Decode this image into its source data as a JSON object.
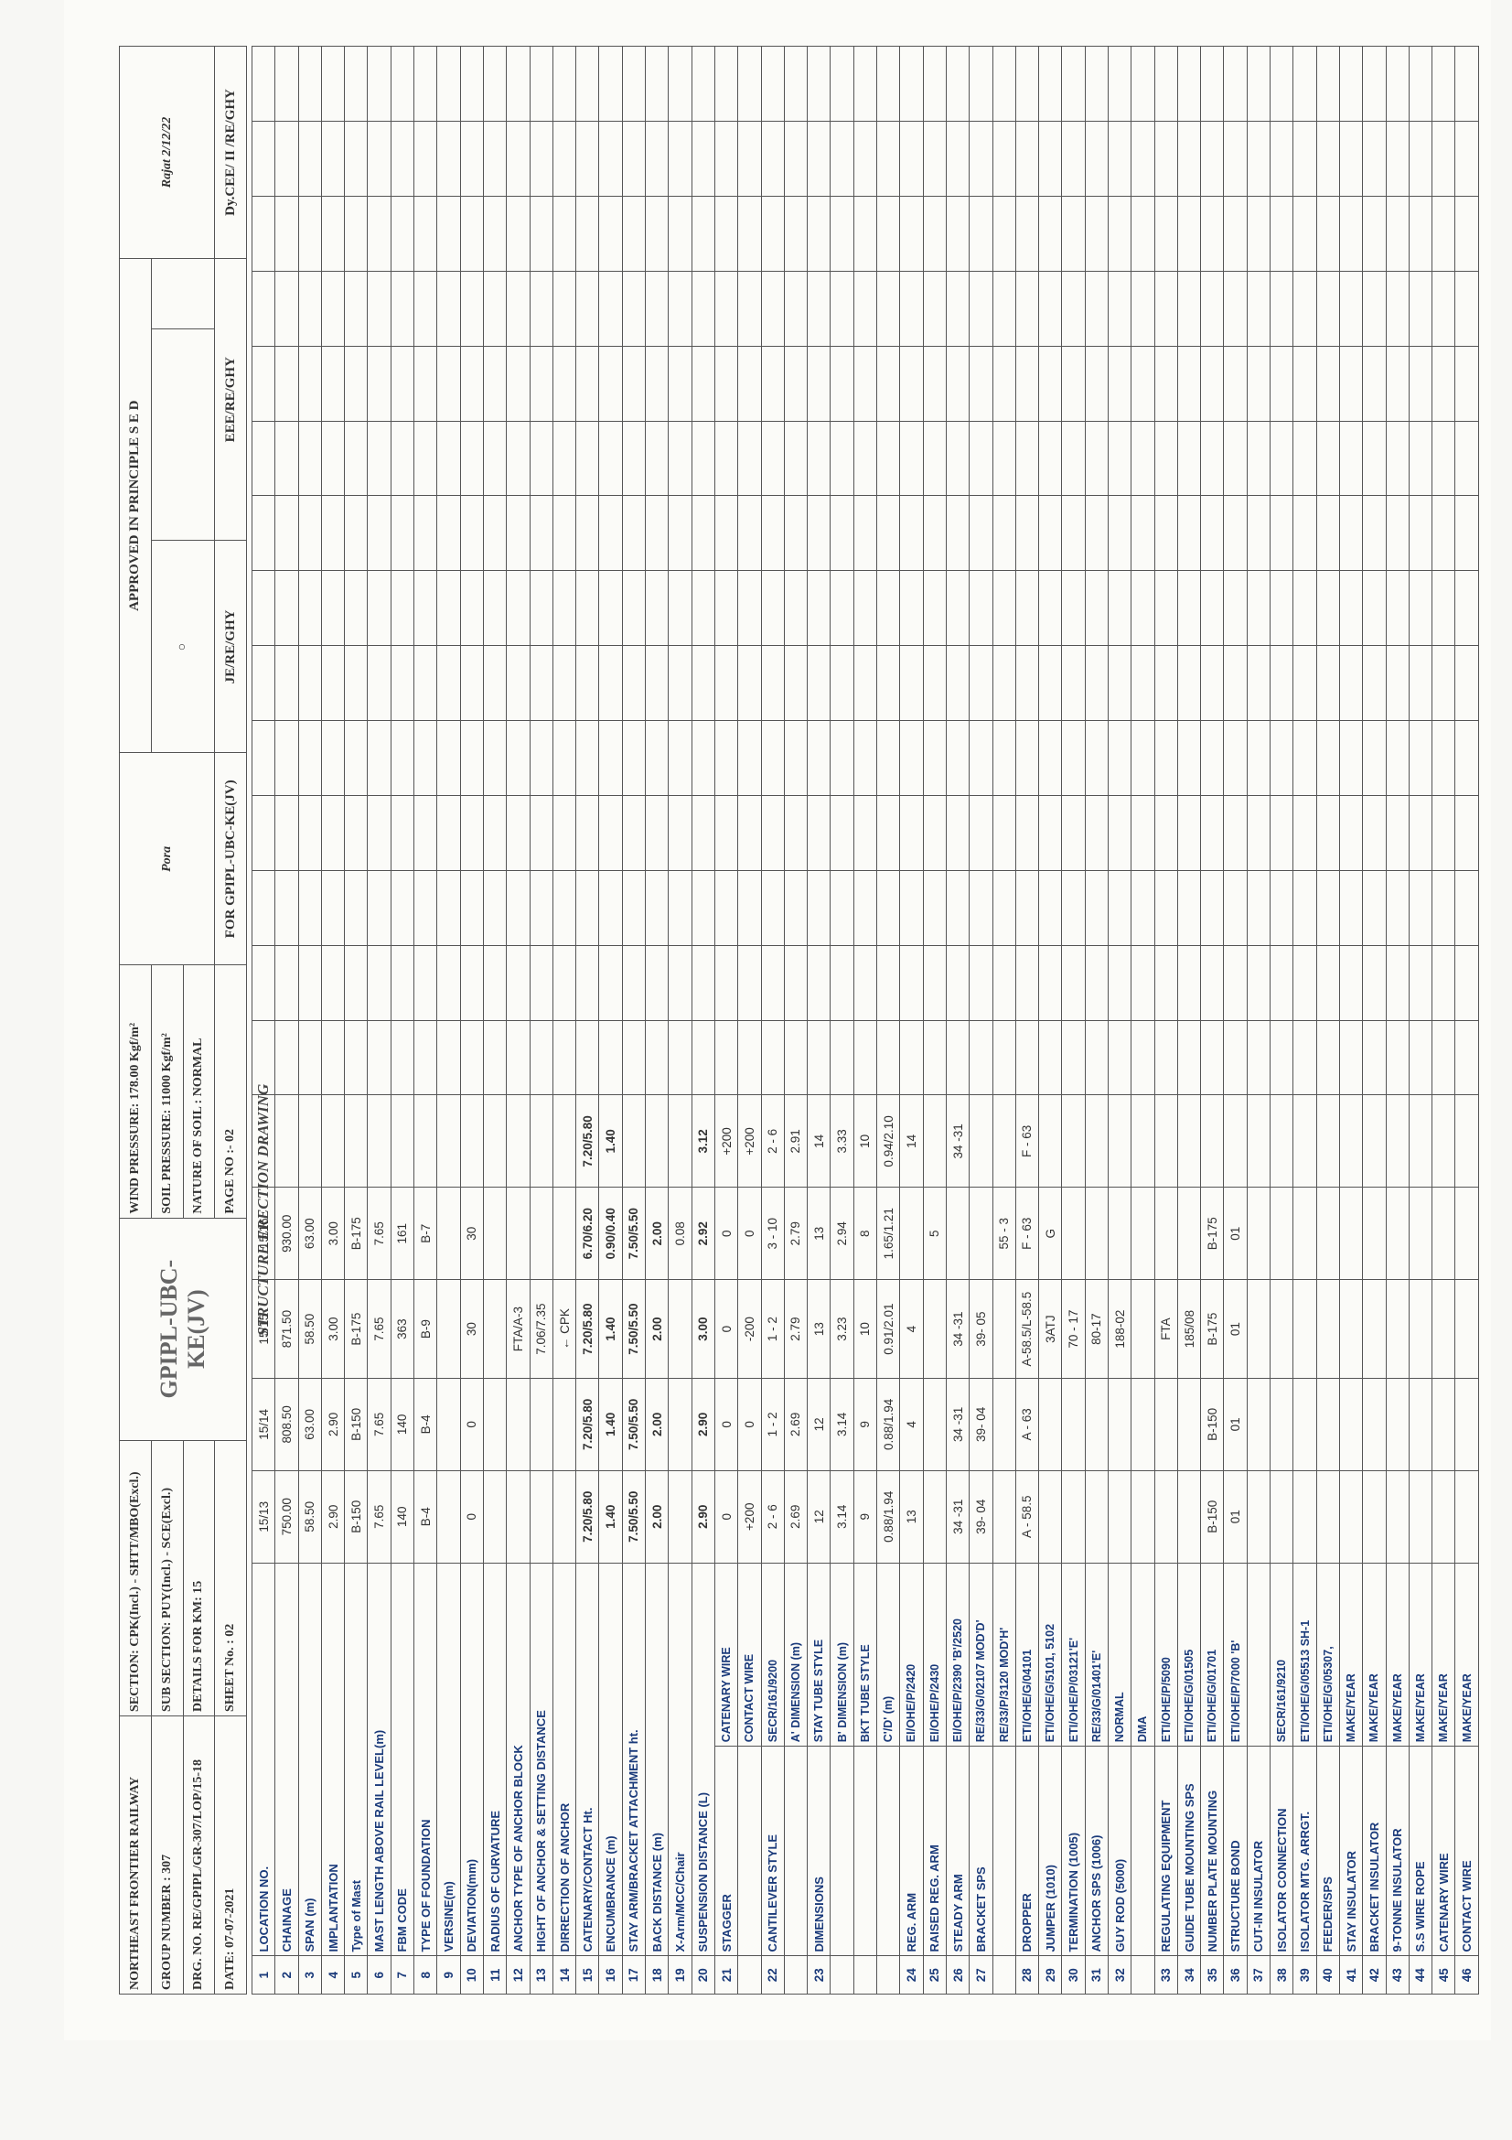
{
  "header": {
    "railway": "NORTHEAST FRONTIER RAILWAY",
    "group": "GROUP NUMBER : 307",
    "drg": "DRG. NO. RE/GPIPL/GR-307/LOP/15-18",
    "date": "DATE: 07-07-2021",
    "section": "SECTION: CPK(Incl.) - SHTT/MBO(Excl.)",
    "subsection": "SUB SECTION: PUY(Incl.) - SCE(Excl.)",
    "details": "DETAILS FOR KM: 15",
    "sheet": "SHEET No. : 02",
    "contractor": "GPIPL-UBC-KE(JV)",
    "wind": "WIND PRESSURE: 178.00 Kgf/m²",
    "soil": "SOIL PRESSURE: 11000 Kgf/m²",
    "nature": "NATURE OF SOIL : NORMAL",
    "page": "PAGE NO :- 02",
    "drawing_title": "STRUCTURE ERECTION DRAWING",
    "approved": "APPROVED IN PRINCIPLE S E D",
    "for_label": "FOR GPIPL-UBC-KE(JV)",
    "je": "JE/RE/GHY",
    "eee": "EEE/RE/GHY",
    "dycee": "Dy.CEE/ II /RE/GHY"
  },
  "rows": [
    {
      "no": "1",
      "param": "LOCATION NO.",
      "v": [
        "15/13",
        "15/14",
        "15/15",
        "15/16"
      ]
    },
    {
      "no": "2",
      "param": "CHAINAGE",
      "v": [
        "750.00",
        "808.50",
        "871.50",
        "930.00"
      ]
    },
    {
      "no": "3",
      "param": "SPAN (m)",
      "v": [
        "58.50",
        "63.00",
        "58.50",
        "63.00"
      ]
    },
    {
      "no": "4",
      "param": "IMPLANTATION",
      "v": [
        "2.90",
        "2.90",
        "3.00",
        "3.00"
      ]
    },
    {
      "no": "5",
      "param": "Type of Mast",
      "v": [
        "B-150",
        "B-150",
        "B-175",
        "B-175"
      ]
    },
    {
      "no": "6",
      "param": "MAST LENGTH ABOVE RAIL LEVEL(m)",
      "v": [
        "7.65",
        "7.65",
        "7.65",
        "7.65"
      ]
    },
    {
      "no": "7",
      "param": "FBM CODE",
      "v": [
        "140",
        "140",
        "363",
        "161"
      ]
    },
    {
      "no": "8",
      "param": "TYPE OF FOUNDATION",
      "v": [
        "B-4",
        "B-4",
        "B-9",
        "B-7"
      ]
    },
    {
      "no": "9",
      "param": "VERSINE(m)",
      "v": [
        "",
        "",
        "",
        ""
      ]
    },
    {
      "no": "10",
      "param": "DEVIATION(mm)",
      "v": [
        "0",
        "0",
        "30",
        "30"
      ]
    },
    {
      "no": "11",
      "param": "RADIUS OF CURVATURE",
      "v": [
        "",
        "",
        "",
        ""
      ]
    },
    {
      "no": "12",
      "param": "ANCHOR TYPE OF ANCHOR BLOCK",
      "v": [
        "",
        "",
        "FTA/A-3",
        ""
      ]
    },
    {
      "no": "13",
      "param": "HIGHT OF ANCHOR & SETTING DISTANCE",
      "v": [
        "",
        "",
        "7.06/7.35",
        ""
      ]
    },
    {
      "no": "14",
      "param": "DIRRECTION OF ANCHOR",
      "v": [
        "",
        "",
        "← CPK",
        ""
      ]
    },
    {
      "no": "15",
      "param": "CATENARY/CONTACT Ht.",
      "v": [
        "7.20/5.80",
        "7.20/5.80",
        "7.20/5.80",
        "6.70/6.20",
        "7.20/5.80"
      ]
    },
    {
      "no": "16",
      "param": "ENCUMBRANCE (m)",
      "v": [
        "1.40",
        "1.40",
        "1.40",
        "0.90/0.40",
        "1.40"
      ]
    },
    {
      "no": "17",
      "param": "STAY ARM/BRACKET ATTACHMENT ht.",
      "v": [
        "7.50/5.50",
        "7.50/5.50",
        "7.50/5.50",
        "7.50/5.50"
      ]
    },
    {
      "no": "18",
      "param": "BACK DISTANCE (m)",
      "v": [
        "2.00",
        "2.00",
        "2.00",
        "2.00"
      ]
    },
    {
      "no": "19",
      "param": "X-Arm/MCC/Chair",
      "v": [
        "",
        "",
        "",
        "0.08"
      ]
    },
    {
      "no": "20",
      "param": "SUSPENSION DISTANCE (L)",
      "v": [
        "2.90",
        "2.90",
        "3.00",
        "2.92",
        "3.12"
      ]
    },
    {
      "no": "21",
      "param": "STAGGER",
      "sub": "CATENARY WIRE",
      "v": [
        "0",
        "0",
        "0",
        "0",
        "+200"
      ]
    },
    {
      "no": "",
      "param": "",
      "sub": "CONTACT WIRE",
      "v": [
        "+200",
        "0",
        "-200",
        "0",
        "+200"
      ]
    },
    {
      "no": "22",
      "param": "CANTILEVER STYLE",
      "sub": "SECR/161/9200",
      "v": [
        "2 - 6",
        "1 - 2",
        "1 - 2",
        "3 - 10",
        "2 - 6"
      ]
    },
    {
      "no": "",
      "param": "",
      "sub": "A' DIMENSION (m)",
      "v": [
        "2.69",
        "2.69",
        "2.79",
        "2.79",
        "2.91"
      ]
    },
    {
      "no": "23",
      "param": "DIMENSIONS",
      "sub": "STAY TUBE STYLE",
      "v": [
        "12",
        "12",
        "13",
        "13",
        "14"
      ]
    },
    {
      "no": "",
      "param": "",
      "sub": "B' DIMENSION (m)",
      "v": [
        "3.14",
        "3.14",
        "3.23",
        "2.94",
        "3.33"
      ]
    },
    {
      "no": "",
      "param": "",
      "sub": "BKT TUBE STYLE",
      "v": [
        "9",
        "9",
        "10",
        "8",
        "10"
      ]
    },
    {
      "no": "",
      "param": "",
      "sub": "C'/D' (m)",
      "v": [
        "0.88/1.94",
        "0.88/1.94",
        "0.91/2.01",
        "1.65/1.21",
        "0.94/2.10"
      ]
    },
    {
      "no": "24",
      "param": "REG. ARM",
      "sub": "EI/OHE/P/2420",
      "v": [
        "13",
        "4",
        "4",
        "",
        "14"
      ]
    },
    {
      "no": "25",
      "param": "RAISED REG. ARM",
      "sub": "EI/OHE/P/2430",
      "v": [
        "",
        "",
        "",
        "5",
        ""
      ]
    },
    {
      "no": "26",
      "param": "STEADY ARM",
      "sub": "EI/OHE/P/2390 'B'/2520",
      "v": [
        "34 -31",
        "34 -31",
        "34 -31",
        "",
        "34 -31"
      ]
    },
    {
      "no": "27",
      "param": "BRACKET SPS",
      "sub": "RE/33/G/02107 MOD'D'",
      "v": [
        "39- 04",
        "39- 04",
        "39- 05",
        "",
        ""
      ]
    },
    {
      "no": "",
      "param": "",
      "sub": "RE/33/P/3120 MOD'H'",
      "v": [
        "",
        "",
        "",
        "55 - 3",
        ""
      ]
    },
    {
      "no": "28",
      "param": "DROPPER",
      "sub": "ETI/OHE/G/04101",
      "v": [
        "A - 58.5",
        "A - 63",
        "A-58.5/L-58.5",
        "F - 63",
        "F - 63"
      ]
    },
    {
      "no": "29",
      "param": "JUMPER (1010)",
      "sub": "ETI/OHE/G/5101, 5102",
      "v": [
        "",
        "",
        "3ATJ",
        "G",
        ""
      ]
    },
    {
      "no": "30",
      "param": "TERMINATION (1005)",
      "sub": "ETI/OHE/P/03121'E'",
      "v": [
        "",
        "",
        "70 - 17",
        "",
        ""
      ]
    },
    {
      "no": "31",
      "param": "ANCHOR SPS (1006)",
      "sub": "RE/33/G/01401'E'",
      "v": [
        "",
        "",
        "80-17",
        "",
        ""
      ]
    },
    {
      "no": "32",
      "param": "GUY ROD (5000)",
      "sub": "NORMAL",
      "v": [
        "",
        "",
        "188-02",
        "",
        ""
      ]
    },
    {
      "no": "",
      "param": "",
      "sub": "DMA",
      "v": [
        "",
        "",
        "",
        "",
        ""
      ]
    },
    {
      "no": "33",
      "param": "REGULATING EQUIPMENT",
      "sub": "ETI/OHE/P/5090",
      "v": [
        "",
        "",
        "FTA",
        "",
        ""
      ]
    },
    {
      "no": "34",
      "param": "GUIDE TUBE MOUNTING SPS",
      "sub": "ETI/OHE/G/01505",
      "v": [
        "",
        "",
        "185/08",
        "",
        ""
      ]
    },
    {
      "no": "35",
      "param": "NUMBER PLATE MOUNTING",
      "sub": "ETI/OHE/G/01701",
      "v": [
        "B-150",
        "B-150",
        "B-175",
        "B-175",
        ""
      ]
    },
    {
      "no": "36",
      "param": "STRUCTURE BOND",
      "sub": "ETI/OHE/P/7000 'B'",
      "v": [
        "01",
        "01",
        "01",
        "01",
        ""
      ]
    },
    {
      "no": "37",
      "param": "CUT-IN INSULATOR",
      "sub": "",
      "v": [
        "",
        "",
        "",
        "",
        ""
      ]
    },
    {
      "no": "38",
      "param": "ISOLATOR CONNECTION",
      "sub": "SECR/161/9210",
      "v": [
        "",
        "",
        "",
        "",
        ""
      ]
    },
    {
      "no": "39",
      "param": "ISOLATOR MTG. ARRGT.",
      "sub": "ETI/OHE/G/05513 SH-1",
      "v": [
        "",
        "",
        "",
        "",
        ""
      ]
    },
    {
      "no": "40",
      "param": "FEEDER/SPS",
      "sub": "ETI/OHE/G/05307,",
      "v": [
        "",
        "",
        "",
        "",
        ""
      ]
    },
    {
      "no": "41",
      "param": "STAY INSULATOR",
      "sub": "MAKE/YEAR",
      "v": [
        "",
        "",
        "",
        "",
        ""
      ]
    },
    {
      "no": "42",
      "param": "BRACKET INSULATOR",
      "sub": "MAKE/YEAR",
      "v": [
        "",
        "",
        "",
        "",
        ""
      ]
    },
    {
      "no": "43",
      "param": "9-TONNE INSULATOR",
      "sub": "MAKE/YEAR",
      "v": [
        "",
        "",
        "",
        "",
        ""
      ]
    },
    {
      "no": "44",
      "param": "S.S WIRE ROPE",
      "sub": "MAKE/YEAR",
      "v": [
        "",
        "",
        "",
        "",
        ""
      ]
    },
    {
      "no": "45",
      "param": "CATENARY WIRE",
      "sub": "MAKE/YEAR",
      "v": [
        "",
        "",
        "",
        "",
        ""
      ]
    },
    {
      "no": "46",
      "param": "CONTACT WIRE",
      "sub": "MAKE/YEAR",
      "v": [
        "",
        "",
        "",
        "",
        ""
      ]
    }
  ]
}
